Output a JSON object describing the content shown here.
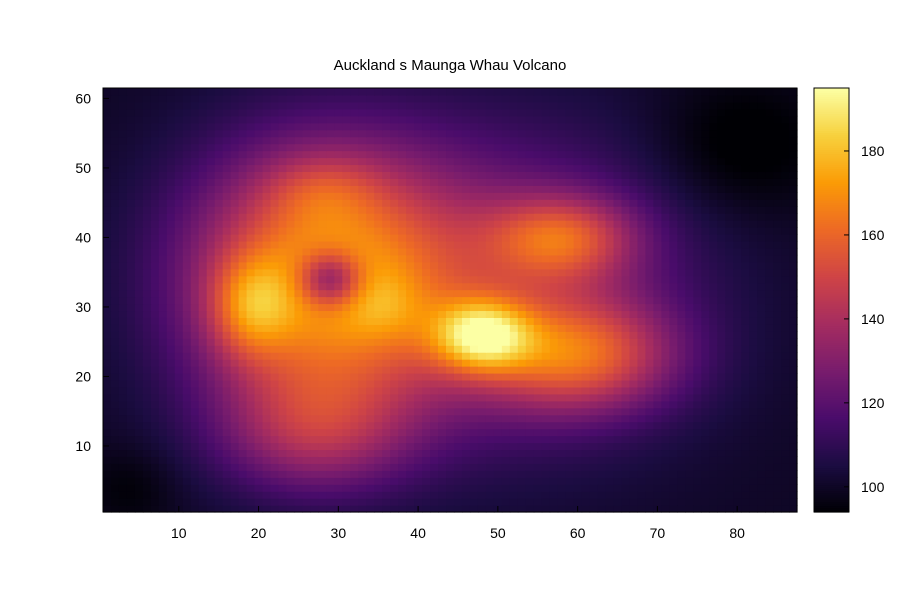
{
  "chart_data": {
    "type": "heatmap",
    "title": "Auckland s Maunga Whau Volcano",
    "xlabel": "",
    "ylabel": "",
    "xlim": [
      0.5,
      87.5
    ],
    "ylim": [
      0.5,
      61.5
    ],
    "x_ticks": [
      10,
      20,
      30,
      40,
      50,
      60,
      70,
      80
    ],
    "y_ticks": [
      10,
      20,
      30,
      40,
      50,
      60
    ],
    "colorbar": {
      "range": [
        94,
        195
      ],
      "ticks": [
        100,
        120,
        140,
        160,
        180
      ],
      "colormap": "inferno",
      "stops": [
        "#000004",
        "#1b0c41",
        "#4a0c6b",
        "#781c6d",
        "#a52c60",
        "#cf4446",
        "#ed6925",
        "#fb9b06",
        "#f7d13d",
        "#fcffa4"
      ]
    },
    "grid": false,
    "legend": "colorbar-right",
    "n_cols": 87,
    "n_rows": 61,
    "value_model": {
      "description": "approximate elevation field of Maunga Whau (Mt Eden), in data units (m); values sampled per cell",
      "base": 100,
      "components": [
        {
          "cx": 28,
          "cy": 34,
          "rx": 17,
          "ry": 19,
          "amp": 70
        },
        {
          "cx": 19,
          "cy": 30,
          "rx": 5,
          "ry": 7,
          "amp": 28
        },
        {
          "cx": 28,
          "cy": 47,
          "rx": 7,
          "ry": 5,
          "amp": 12
        },
        {
          "cx": 36,
          "cy": 30,
          "rx": 5,
          "ry": 5,
          "amp": 10
        },
        {
          "cx": 29,
          "cy": 34,
          "rx": 4,
          "ry": 4,
          "amp": -42
        },
        {
          "cx": 48,
          "cy": 26,
          "rx": 6,
          "ry": 5,
          "amp": 52
        },
        {
          "cx": 60,
          "cy": 23,
          "rx": 12,
          "ry": 8,
          "amp": 45
        },
        {
          "cx": 58,
          "cy": 40,
          "rx": 9,
          "ry": 6,
          "amp": 38
        },
        {
          "cx": 53,
          "cy": 33,
          "rx": 22,
          "ry": 22,
          "amp": 28
        },
        {
          "cx": 27,
          "cy": 12,
          "rx": 12,
          "ry": 9,
          "amp": 28
        },
        {
          "cx": 80,
          "cy": 53,
          "rx": 11,
          "ry": 10,
          "amp": -10
        },
        {
          "cx": 4,
          "cy": 4,
          "rx": 6,
          "ry": 6,
          "amp": -6
        }
      ],
      "min": 94,
      "max": 195
    },
    "colors": {
      "low": "#000004",
      "high": "#fcffa4"
    }
  }
}
